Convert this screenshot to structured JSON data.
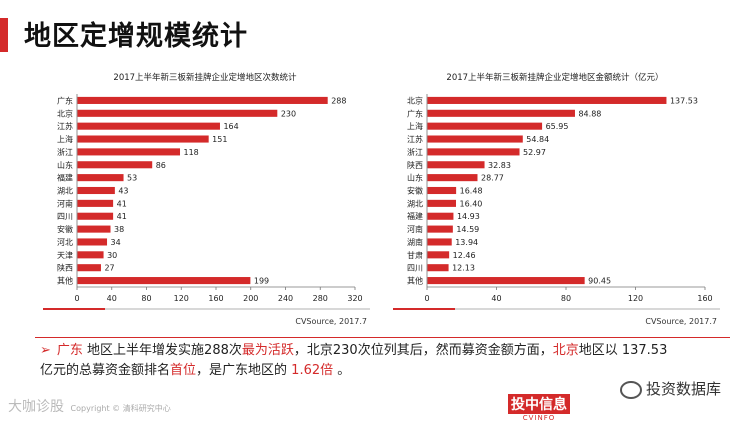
{
  "page": {
    "title": "地区定增规模统计",
    "footer": "Copyright © 清科研究中心",
    "footer_watermark": "大咖诊股",
    "logo_main": "投中信息",
    "logo_sub": "CVINFO",
    "wechat_label": "投资数据库"
  },
  "summary": {
    "arrow": "➢",
    "p1": "广东",
    "p2": " 地区上半年增发实施288次",
    "p3": "最为活跃",
    "p4": "，北京230次位列其后，然而募资金额方面，",
    "p5": "北京",
    "p6": "地区以 137.53亿元的总募资金额排名",
    "p7": "首位",
    "p8": "，是广东地区的 ",
    "p9": "1.62倍",
    "p10": " 。"
  },
  "colors": {
    "bar": "#d42a2a",
    "accent": "#d42a2a"
  },
  "chart_data": [
    {
      "type": "bar",
      "orientation": "horizontal",
      "title": "2017上半年新三板新挂牌企业定增地区次数统计",
      "categories": [
        "广东",
        "北京",
        "江苏",
        "上海",
        "浙江",
        "山东",
        "福建",
        "湖北",
        "河南",
        "四川",
        "安徽",
        "河北",
        "天津",
        "陕西",
        "其他"
      ],
      "values": [
        288,
        230,
        164,
        151,
        118,
        86,
        53,
        43,
        41,
        41,
        38,
        34,
        30,
        27,
        199
      ],
      "value_labels": [
        "288",
        "230",
        "164",
        "151",
        "118",
        "86",
        "53",
        "43",
        "41",
        "41",
        "38",
        "34",
        "30",
        "27",
        "199"
      ],
      "xlim": [
        0,
        320
      ],
      "ticks": [
        "0",
        "40",
        "80",
        "120",
        "160",
        "200",
        "240",
        "280",
        "320"
      ],
      "source": "CVSource, 2017.7"
    },
    {
      "type": "bar",
      "orientation": "horizontal",
      "title": "2017上半年新三板新挂牌企业定增地区金额统计（亿元）",
      "categories": [
        "北京",
        "广东",
        "上海",
        "江苏",
        "浙江",
        "陕西",
        "山东",
        "安徽",
        "湖北",
        "福建",
        "河南",
        "湖南",
        "甘肃",
        "四川",
        "其他"
      ],
      "values": [
        137.53,
        84.88,
        65.95,
        54.84,
        52.97,
        32.83,
        28.77,
        16.48,
        16.4,
        14.93,
        14.59,
        13.94,
        12.46,
        12.13,
        90.45
      ],
      "value_labels": [
        "137.53",
        "84.88",
        "65.95",
        "54.84",
        "52.97",
        "32.83",
        "28.77",
        "16.48",
        "16.40",
        "14.93",
        "14.59",
        "13.94",
        "12.46",
        "12.13",
        "90.45"
      ],
      "xlim": [
        0,
        160
      ],
      "ticks": [
        "0",
        "40",
        "80",
        "120",
        "160"
      ],
      "source": "CVSource, 2017.7"
    }
  ]
}
